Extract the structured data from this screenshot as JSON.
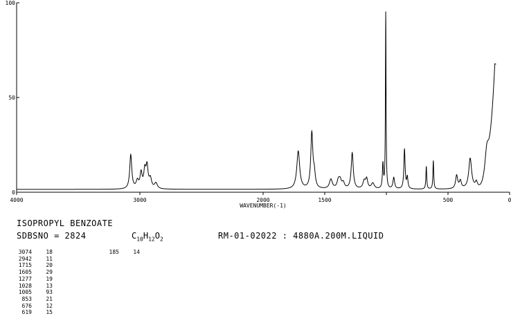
{
  "chart_data": {
    "type": "line",
    "title": "",
    "xlabel": "WAVENUMBER(-1)",
    "ylabel": "",
    "xlim": [
      4000,
      0
    ],
    "ylim": [
      0,
      100
    ],
    "x_ticks": [
      4000,
      3000,
      2000,
      1500,
      1000,
      500,
      0
    ],
    "x_tick_labels": [
      "4000",
      "3000",
      "2000",
      "1500",
      "",
      "500",
      "0"
    ],
    "y_ticks": [
      0,
      50,
      100
    ],
    "y_tick_labels": [
      "0",
      "50",
      "100"
    ],
    "baseline": 1.5,
    "series": [
      {
        "peaks": [
          {
            "x": 3074,
            "y": 18,
            "w": 10
          },
          {
            "x": 3020,
            "y": 4,
            "w": 12
          },
          {
            "x": 2990,
            "y": 8,
            "w": 10
          },
          {
            "x": 2960,
            "y": 9,
            "w": 10
          },
          {
            "x": 2942,
            "y": 11,
            "w": 10
          },
          {
            "x": 2915,
            "y": 5,
            "w": 12
          },
          {
            "x": 2870,
            "y": 3,
            "w": 14
          },
          {
            "x": 1715,
            "y": 20,
            "w": 14
          },
          {
            "x": 1605,
            "y": 29,
            "w": 10
          },
          {
            "x": 1585,
            "y": 7,
            "w": 10
          },
          {
            "x": 1450,
            "y": 5,
            "w": 14
          },
          {
            "x": 1390,
            "y": 4,
            "w": 12
          },
          {
            "x": 1375,
            "y": 4,
            "w": 12
          },
          {
            "x": 1350,
            "y": 3,
            "w": 12
          },
          {
            "x": 1277,
            "y": 19,
            "w": 10
          },
          {
            "x": 1180,
            "y": 4,
            "w": 12
          },
          {
            "x": 1160,
            "y": 5,
            "w": 10
          },
          {
            "x": 1110,
            "y": 3,
            "w": 14
          },
          {
            "x": 1028,
            "y": 13,
            "w": 5
          },
          {
            "x": 1005,
            "y": 93,
            "w": 3
          },
          {
            "x": 940,
            "y": 6,
            "w": 8
          },
          {
            "x": 853,
            "y": 21,
            "w": 6
          },
          {
            "x": 830,
            "y": 6,
            "w": 6
          },
          {
            "x": 676,
            "y": 12,
            "w": 4
          },
          {
            "x": 619,
            "y": 15,
            "w": 4
          },
          {
            "x": 430,
            "y": 7,
            "w": 10
          },
          {
            "x": 400,
            "y": 4,
            "w": 10
          },
          {
            "x": 320,
            "y": 16,
            "w": 14
          },
          {
            "x": 270,
            "y": 3,
            "w": 10
          },
          {
            "x": 185,
            "y": 14,
            "w": 20
          }
        ],
        "end_rise": {
          "from": 260,
          "to": 120,
          "top": 65
        }
      }
    ]
  },
  "compound_name": "ISOPROPYL BENZOATE",
  "sdbs_no": "SDBSNO = 2824",
  "formula": {
    "c": "C",
    "c_n": "10",
    "h": "H",
    "h_n": "12",
    "o": "O",
    "o_n": "2"
  },
  "measurement": "RM-01-02022 : 4880A.200M.LIQUID",
  "peak_table": [
    [
      {
        "wn": "3074",
        "in": "18"
      },
      {
        "wn": "2942",
        "in": "11"
      },
      {
        "wn": "1715",
        "in": "20"
      },
      {
        "wn": "1605",
        "in": "29"
      },
      {
        "wn": "1277",
        "in": "19"
      },
      {
        "wn": "1028",
        "in": "13"
      },
      {
        "wn": "1005",
        "in": "93"
      },
      {
        "wn": "853",
        "in": "21"
      },
      {
        "wn": "676",
        "in": "12"
      },
      {
        "wn": "619",
        "in": "15"
      }
    ],
    [
      {
        "wn": "185",
        "in": "14"
      }
    ]
  ]
}
